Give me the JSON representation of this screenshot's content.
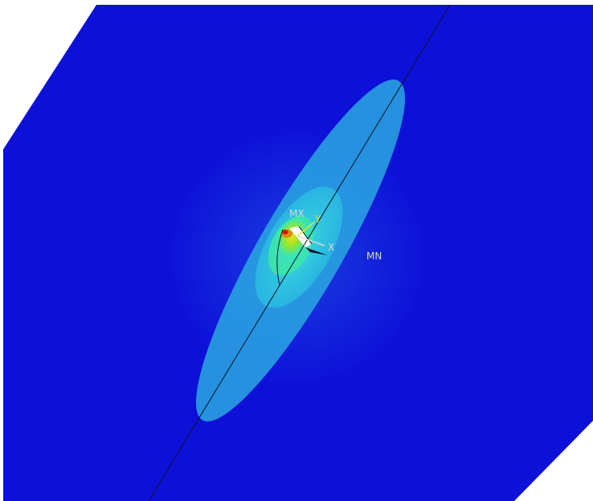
{
  "viewport": {
    "background_color": "#ffffff",
    "plate_color": "#0d11d8"
  },
  "contour_colors": [
    "#0d11d8",
    "#2aa8e0",
    "#36d6e4",
    "#3de8a8",
    "#7be63a",
    "#e0e020",
    "#e08a10",
    "#e00a0a"
  ],
  "labels": {
    "max": "MX",
    "min": "MN",
    "axis_x": "X",
    "axis_y": "Y"
  },
  "label_colors": {
    "max": "#d8d8d8",
    "min": "#d8d8d8",
    "axis_x": "#d8d8d8",
    "axis_y": "#e0e040"
  }
}
